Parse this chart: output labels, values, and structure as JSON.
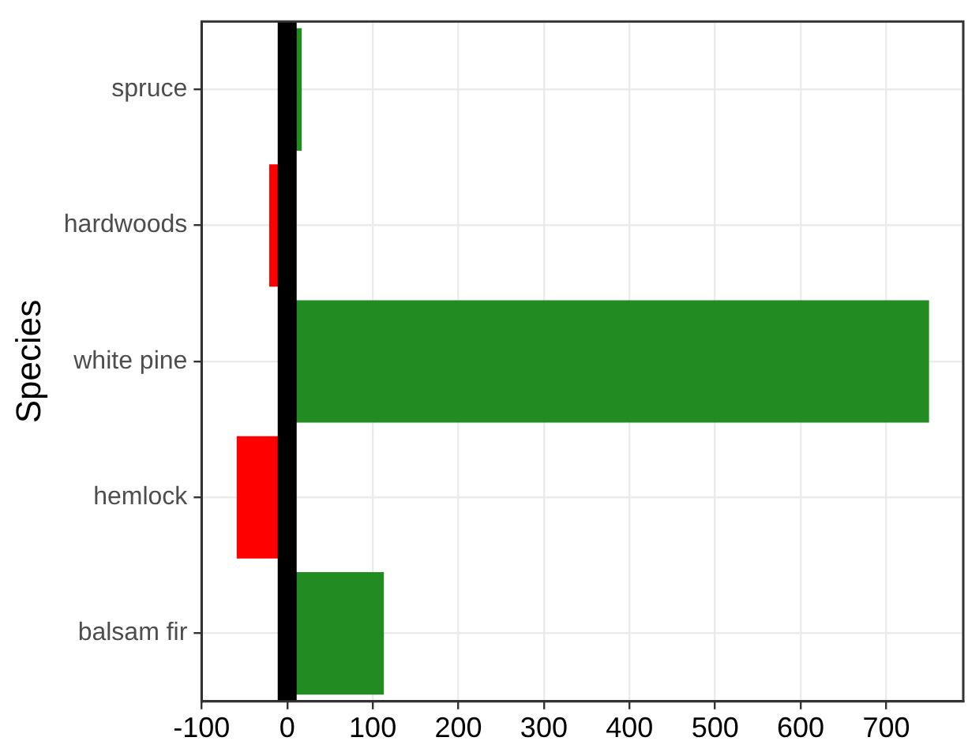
{
  "chart_data": {
    "type": "bar",
    "orientation": "horizontal",
    "ylabel": "Species",
    "categories": [
      "spruce",
      "hardwoods",
      "white pine",
      "hemlock",
      "balsam fir"
    ],
    "values": [
      17,
      -21,
      750,
      -59,
      113
    ],
    "colors": [
      "#228b22",
      "#ff0000",
      "#228b22",
      "#ff0000",
      "#228b22"
    ],
    "xlim": [
      -100,
      790
    ],
    "xticks": [
      -100,
      0,
      100,
      200,
      300,
      400,
      500,
      600,
      700
    ],
    "ref_lines": [
      {
        "axis": "x",
        "value": 0,
        "color": "#000000"
      }
    ],
    "grid": true,
    "legend": false
  }
}
